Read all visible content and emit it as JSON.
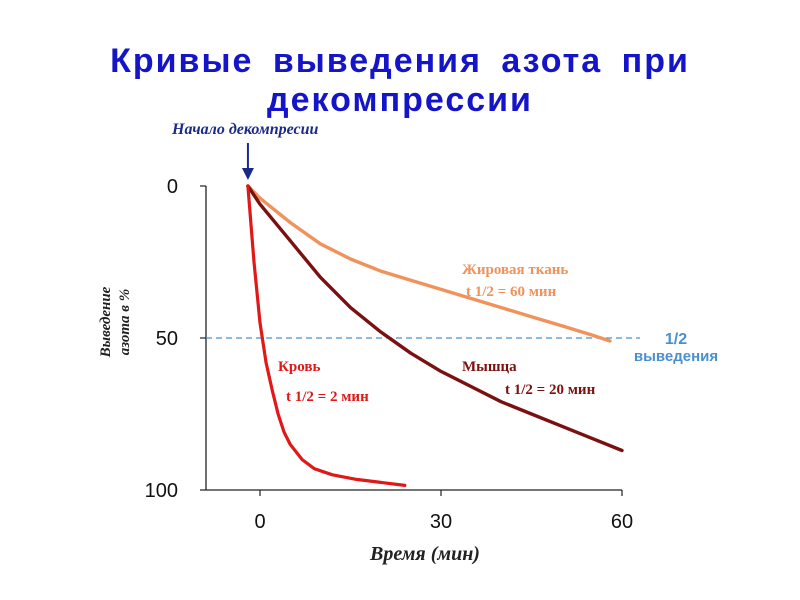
{
  "title": "Кривые выведения азота при декомпрессии",
  "chart_data": {
    "type": "line",
    "xlabel": "Время (мин)",
    "ylabel_lines": [
      "Выведение",
      "азота в %"
    ],
    "xlim": [
      -3,
      60
    ],
    "ylim": [
      0,
      100
    ],
    "y_inverted": true,
    "x_ticks": [
      0,
      30,
      60
    ],
    "y_ticks": [
      0,
      50,
      100
    ],
    "annotation": "Начало декомпресии",
    "annotation_x": -2,
    "reference_line": {
      "y": 50,
      "label_lines": [
        "1/2",
        "выведения"
      ],
      "color": "#4a90d0"
    },
    "series": [
      {
        "name": "Жировая ткань",
        "label": "t 1/2 = 60  мин",
        "color": "#f0925a",
        "x": [
          -2,
          0,
          5,
          10,
          15,
          20,
          25,
          30,
          35,
          40,
          45,
          50,
          55,
          58
        ],
        "y": [
          0,
          4,
          12,
          19,
          24,
          28,
          31,
          34,
          37,
          40,
          43,
          46,
          49,
          51
        ]
      },
      {
        "name": "Мышца",
        "label": "t 1/2 = 20  мин",
        "color": "#7a1010",
        "x": [
          -2,
          0,
          5,
          10,
          15,
          20,
          25,
          30,
          35,
          40,
          45,
          50,
          55,
          60
        ],
        "y": [
          0,
          6,
          18,
          30,
          40,
          48,
          55,
          61,
          66,
          71,
          75,
          79,
          83,
          87
        ]
      },
      {
        "name": "Кровь",
        "label": "t 1/2 = 2 мин",
        "color": "#e01818",
        "x": [
          -2,
          -1,
          0,
          1,
          2,
          3,
          4,
          5,
          7,
          9,
          12,
          16,
          20,
          24
        ],
        "y": [
          0,
          25,
          45,
          58,
          67,
          75,
          81,
          85,
          90,
          93,
          95,
          96.5,
          97.5,
          98.5
        ]
      }
    ]
  }
}
